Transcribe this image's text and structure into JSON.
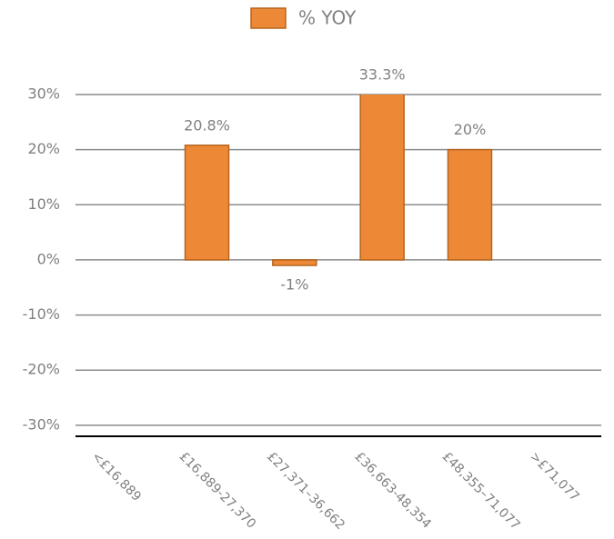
{
  "chart_data": {
    "type": "bar",
    "categories": [
      "<£16,889",
      "£16,889-27,370",
      "£27,371–36,662",
      "£36,663-48,354",
      "£48,355–71,077",
      ">£71,077"
    ],
    "series": [
      {
        "name": "% YOY",
        "color": "#ed8936",
        "values": [
          null,
          20.8,
          -1,
          33.3,
          20,
          null
        ],
        "value_labels": [
          null,
          "20.8%",
          "-1%",
          "33.3%",
          "20%",
          null
        ]
      }
    ],
    "ylim": [
      -32,
      30
    ],
    "yticks": [
      {
        "value": -30,
        "label": "-30%"
      },
      {
        "value": -20,
        "label": "-20%"
      },
      {
        "value": -10,
        "label": "-10%"
      },
      {
        "value": 0,
        "label": "0%"
      },
      {
        "value": 10,
        "label": "10%"
      },
      {
        "value": 20,
        "label": "20%"
      },
      {
        "value": 30,
        "label": "30%"
      }
    ],
    "grid": true,
    "legend": "top"
  }
}
